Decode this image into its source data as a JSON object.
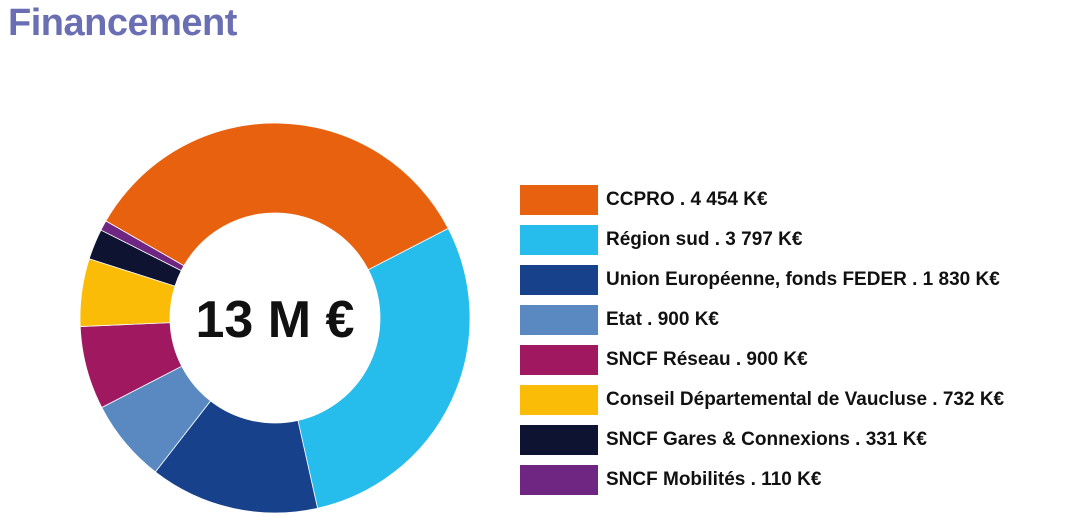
{
  "header": {
    "title": "Financement"
  },
  "chart_data": {
    "type": "pie",
    "variant": "donut",
    "center_label": "13 M €",
    "unit": "K€",
    "legend_placement": "right",
    "slices": [
      {
        "label": "CCPRO . 4 454 K€",
        "value": 4454,
        "color": "#e8610f"
      },
      {
        "label": "Région sud . 3 797 K€",
        "value": 3797,
        "color": "#26bceb"
      },
      {
        "label": "Union Européenne, fonds FEDER . 1 830 K€",
        "value": 1830,
        "color": "#17418a"
      },
      {
        "label": "Etat . 900 K€",
        "value": 900,
        "color": "#5a89c2"
      },
      {
        "label": "SNCF Réseau . 900 K€",
        "value": 900,
        "color": "#a0185f"
      },
      {
        "label": "Conseil Départemental de Vaucluse . 732 K€",
        "value": 732,
        "color": "#fbbc07"
      },
      {
        "label": "SNCF Gares & Connexions . 331 K€",
        "value": 331,
        "color": "#0e1332"
      },
      {
        "label": "SNCF Mobilités . 110 K€",
        "value": 110,
        "color": "#6f2682"
      }
    ]
  }
}
